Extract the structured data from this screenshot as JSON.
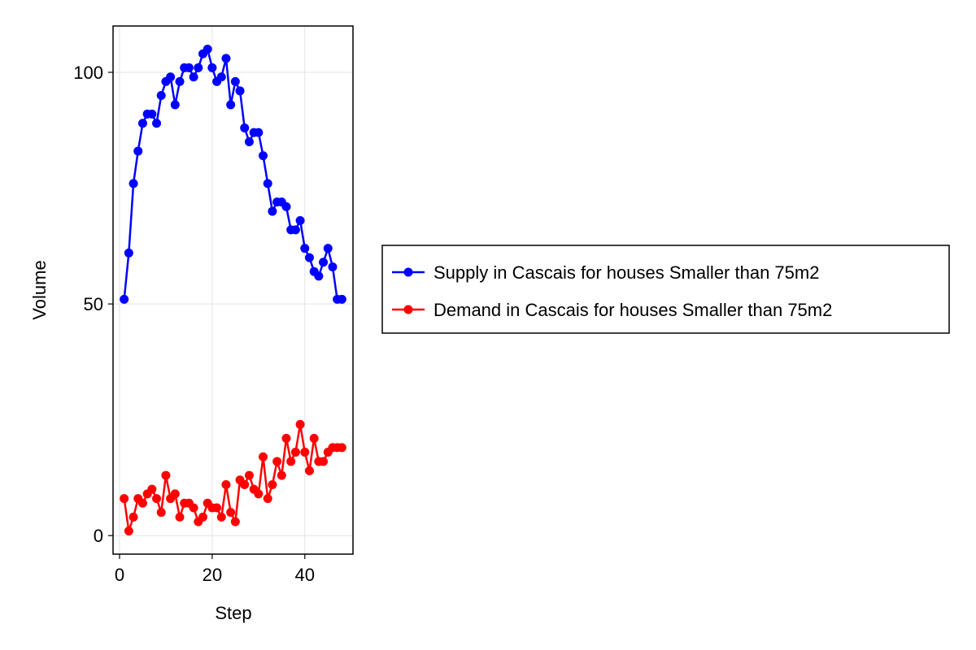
{
  "chart_data": {
    "type": "line",
    "xlabel": "Step",
    "ylabel": "Volume",
    "xlim": [
      -1.4,
      50.4
    ],
    "ylim": [
      -4,
      110
    ],
    "x_ticks": [
      0,
      20,
      40
    ],
    "y_ticks": [
      0,
      50,
      100
    ],
    "grid": true,
    "legend_position": "right",
    "x": [
      1,
      2,
      3,
      4,
      5,
      6,
      7,
      8,
      9,
      10,
      11,
      12,
      13,
      14,
      15,
      16,
      17,
      18,
      19,
      20,
      21,
      22,
      23,
      24,
      25,
      26,
      27,
      28,
      29,
      30,
      31,
      32,
      33,
      34,
      35,
      36,
      37,
      38,
      39,
      40,
      41,
      42,
      43,
      44,
      45,
      46,
      47,
      48
    ],
    "series": [
      {
        "name": "Supply in Cascais for houses Smaller than 75m2",
        "color": "#0000ff",
        "values": [
          51,
          61,
          76,
          83,
          89,
          91,
          91,
          89,
          95,
          98,
          99,
          93,
          98,
          101,
          101,
          99,
          101,
          104,
          105,
          101,
          98,
          99,
          103,
          93,
          98,
          96,
          88,
          85,
          87,
          87,
          82,
          76,
          70,
          72,
          72,
          71,
          66,
          66,
          68,
          62,
          60,
          57,
          56,
          59,
          62,
          58,
          51,
          51
        ]
      },
      {
        "name": "Demand in Cascais for houses Smaller than 75m2",
        "color": "#ff0000",
        "values": [
          8,
          1,
          4,
          8,
          7,
          9,
          10,
          8,
          5,
          13,
          8,
          9,
          4,
          7,
          7,
          6,
          3,
          4,
          7,
          6,
          6,
          4,
          11,
          5,
          3,
          12,
          11,
          13,
          10,
          9,
          17,
          8,
          11,
          16,
          13,
          21,
          16,
          18,
          24,
          18,
          14,
          21,
          16,
          16,
          18,
          19,
          19,
          19
        ]
      }
    ]
  }
}
